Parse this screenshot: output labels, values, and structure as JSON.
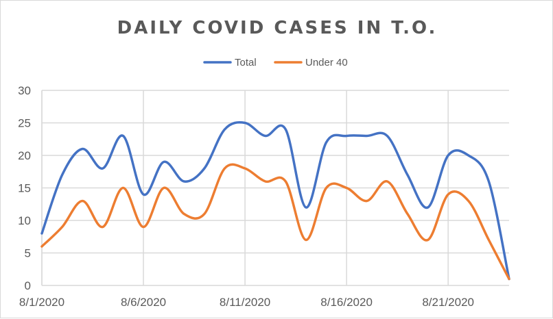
{
  "chart_data": {
    "type": "line",
    "title": "DAILY COVID CASES IN T.O.",
    "xlabel": "",
    "ylabel": "",
    "x": [
      "8/1/2020",
      "8/2/2020",
      "8/3/2020",
      "8/4/2020",
      "8/5/2020",
      "8/6/2020",
      "8/7/2020",
      "8/8/2020",
      "8/9/2020",
      "8/10/2020",
      "8/11/2020",
      "8/12/2020",
      "8/13/2020",
      "8/14/2020",
      "8/15/2020",
      "8/16/2020",
      "8/17/2020",
      "8/18/2020",
      "8/19/2020",
      "8/20/2020",
      "8/21/2020",
      "8/22/2020",
      "8/23/2020",
      "8/24/2020"
    ],
    "x_tick_labels": [
      "8/1/2020",
      "8/6/2020",
      "8/11/2020",
      "8/16/2020",
      "8/21/2020"
    ],
    "y_tick_labels": [
      "0",
      "5",
      "10",
      "15",
      "20",
      "25",
      "30"
    ],
    "ylim": [
      0,
      30
    ],
    "grid": true,
    "legend_position": "top",
    "series": [
      {
        "name": "Total",
        "color": "#4472c4",
        "values": [
          8,
          17,
          21,
          18,
          23,
          14,
          19,
          16,
          18,
          24,
          25,
          23,
          24,
          12,
          22,
          23,
          23,
          23,
          17,
          12,
          20,
          20,
          16,
          1
        ]
      },
      {
        "name": "Under 40",
        "color": "#ed7d31",
        "values": [
          6,
          9,
          13,
          9,
          15,
          9,
          15,
          11,
          11,
          18,
          18,
          16,
          16,
          7,
          15,
          15,
          13,
          16,
          11,
          7,
          14,
          13,
          7,
          1
        ]
      }
    ]
  }
}
